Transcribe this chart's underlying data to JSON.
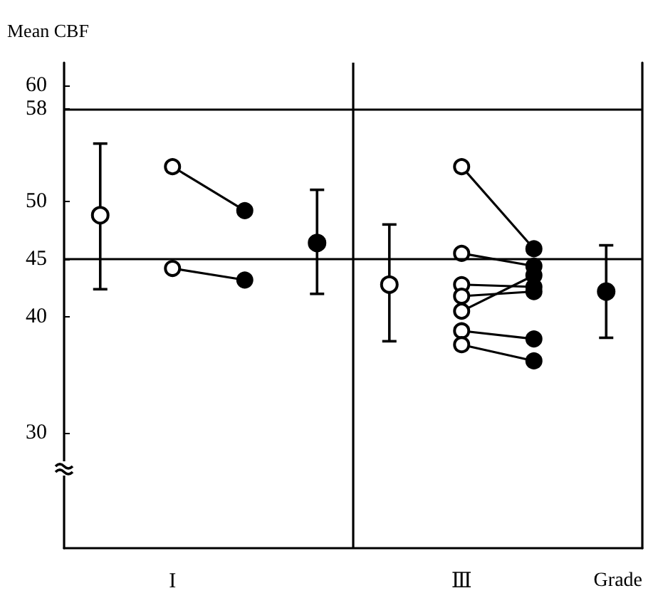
{
  "chart_data": {
    "type": "line",
    "ylabel": "Mean CBF",
    "xlabel": "Grade",
    "categories": [
      null,
      "I",
      null,
      null,
      null,
      "Ⅲ",
      null,
      null
    ],
    "ylim": [
      20,
      62
    ],
    "yticks": [
      30,
      40,
      45,
      50,
      58,
      60
    ],
    "ref_lines": [
      {
        "axis": "y",
        "value": 58,
        "color": "#000000"
      },
      {
        "axis": "y",
        "value": 45,
        "color": "#000000"
      }
    ],
    "grid": false,
    "marker": "circle",
    "series": [
      {
        "color": "#000000",
        "colors": [
          null,
          "#ffffff",
          "#000000",
          null,
          null,
          null,
          null,
          null
        ],
        "values": [
          null,
          53.0,
          49.2,
          null,
          null,
          null,
          null,
          null
        ]
      },
      {
        "color": "#000000",
        "colors": [
          null,
          "#ffffff",
          "#000000",
          null,
          null,
          null,
          null,
          null
        ],
        "values": [
          null,
          44.2,
          43.2,
          null,
          null,
          null,
          null,
          null
        ]
      },
      {
        "color": "#000000",
        "colors": [
          null,
          null,
          null,
          null,
          null,
          "#ffffff",
          "#000000",
          null
        ],
        "values": [
          null,
          null,
          null,
          null,
          null,
          53.0,
          45.9,
          null
        ]
      },
      {
        "color": "#000000",
        "colors": [
          null,
          null,
          null,
          null,
          null,
          "#ffffff",
          "#000000",
          null
        ],
        "values": [
          null,
          null,
          null,
          null,
          null,
          45.5,
          44.4,
          null
        ]
      },
      {
        "color": "#000000",
        "colors": [
          null,
          null,
          null,
          null,
          null,
          "#ffffff",
          "#000000",
          null
        ],
        "values": [
          null,
          null,
          null,
          null,
          null,
          42.8,
          42.6,
          null
        ]
      },
      {
        "color": "#000000",
        "colors": [
          null,
          null,
          null,
          null,
          null,
          "#ffffff",
          "#000000",
          null
        ],
        "values": [
          null,
          null,
          null,
          null,
          null,
          41.8,
          42.2,
          null
        ]
      },
      {
        "color": "#000000",
        "colors": [
          null,
          null,
          null,
          null,
          null,
          "#ffffff",
          "#000000",
          null
        ],
        "values": [
          null,
          null,
          null,
          null,
          null,
          40.5,
          43.6,
          null
        ]
      },
      {
        "color": "#000000",
        "colors": [
          null,
          null,
          null,
          null,
          null,
          "#ffffff",
          "#000000",
          null
        ],
        "values": [
          null,
          null,
          null,
          null,
          null,
          38.8,
          38.1,
          null
        ]
      },
      {
        "color": "#000000",
        "colors": [
          null,
          null,
          null,
          null,
          null,
          "#ffffff",
          "#000000",
          null
        ],
        "values": [
          null,
          null,
          null,
          null,
          null,
          37.6,
          36.2,
          null
        ]
      },
      {
        "type": "scatter",
        "color": "#000000",
        "colors": [
          "#ffffff",
          null,
          null,
          "#000000",
          "#ffffff",
          null,
          null,
          "#000000"
        ],
        "values": [
          48.8,
          null,
          null,
          46.4,
          42.8,
          null,
          null,
          42.2
        ],
        "errors": [
          [
            42.4,
            55.0
          ],
          null,
          null,
          [
            42.0,
            51.0
          ],
          [
            37.9,
            48.0
          ],
          null,
          null,
          [
            38.2,
            46.2
          ]
        ]
      }
    ]
  }
}
